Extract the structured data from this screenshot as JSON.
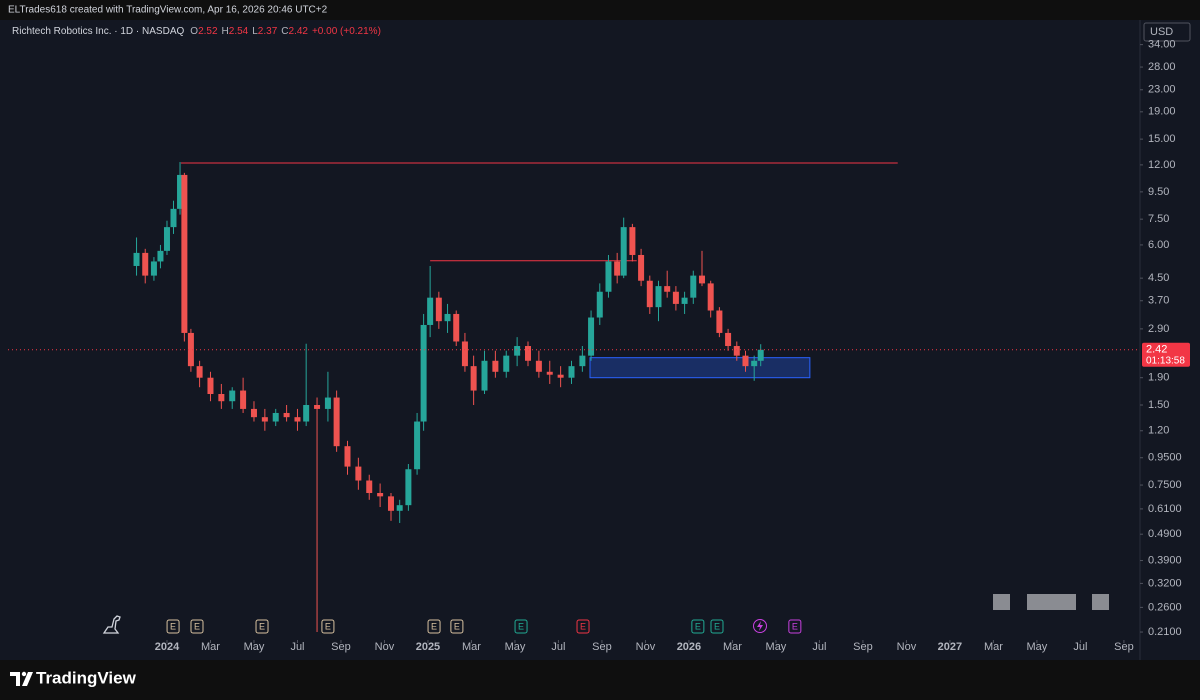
{
  "header": {
    "text": "ELTrades618 created with TradingView.com, Apr 16, 2026 20:46 UTC+2"
  },
  "legend": {
    "symbol": "Richtech Robotics Inc. · 1D · NASDAQ",
    "o_label": "O",
    "o": 2.52,
    "h_label": "H",
    "h": 2.54,
    "l_label": "L",
    "l": 2.37,
    "c_label": "C",
    "c": 2.42,
    "change": "+0.00 (+0.21%)"
  },
  "price_axis": {
    "currency": "USD"
  },
  "footer": {
    "brand": "TradingView"
  },
  "chart_data": {
    "type": "candlestick",
    "log_scale": true,
    "up_color": "#26a69a",
    "down_color": "#ef5350",
    "xlim": [
      -7.31,
      44.74
    ],
    "ylim": [
      0.196,
      40.3
    ],
    "x": [
      -1.4,
      -1.0,
      -0.6,
      -0.3,
      0.0,
      0.3,
      0.6,
      0.8,
      1.1,
      1.5,
      2.0,
      2.5,
      3.0,
      3.5,
      4.0,
      4.5,
      5.0,
      5.5,
      6.0,
      6.4,
      6.9,
      7.4,
      7.8,
      8.3,
      8.8,
      9.3,
      9.8,
      10.3,
      10.7,
      11.1,
      11.5,
      11.8,
      12.1,
      12.5,
      12.9,
      13.3,
      13.7,
      14.1,
      14.6,
      15.1,
      15.6,
      16.1,
      16.6,
      17.1,
      17.6,
      18.1,
      18.6,
      19.1,
      19.5,
      19.9,
      20.3,
      20.7,
      21.0,
      21.4,
      21.8,
      22.2,
      22.6,
      23.0,
      23.4,
      23.8,
      24.2,
      24.6,
      25.0,
      25.4,
      25.8,
      26.2,
      26.6,
      27.0,
      27.3
    ],
    "open": [
      5.0,
      5.6,
      4.6,
      5.2,
      5.7,
      7.0,
      8.2,
      11.0,
      2.8,
      2.1,
      1.9,
      1.65,
      1.55,
      1.7,
      1.45,
      1.35,
      1.3,
      1.4,
      1.35,
      1.3,
      1.5,
      1.45,
      1.6,
      1.05,
      0.88,
      0.78,
      0.7,
      0.68,
      0.6,
      0.63,
      0.86,
      1.3,
      3.0,
      3.8,
      3.1,
      3.3,
      2.6,
      2.1,
      1.7,
      2.2,
      2.0,
      2.3,
      2.5,
      2.2,
      2.0,
      1.95,
      1.9,
      2.1,
      2.3,
      3.2,
      4.0,
      5.2,
      4.6,
      7.0,
      5.5,
      4.4,
      3.5,
      4.2,
      4.0,
      3.6,
      3.8,
      4.6,
      4.3,
      3.4,
      2.8,
      2.5,
      2.3,
      2.1,
      2.2
    ],
    "high": [
      6.4,
      5.8,
      5.4,
      6.0,
      7.4,
      8.8,
      12.3,
      11.2,
      2.9,
      2.2,
      2.0,
      1.8,
      1.75,
      1.9,
      1.55,
      1.45,
      1.45,
      1.5,
      1.45,
      2.55,
      1.6,
      2.0,
      1.7,
      1.1,
      0.95,
      0.82,
      0.76,
      0.7,
      0.66,
      0.9,
      1.4,
      3.3,
      5.0,
      4.0,
      3.6,
      3.4,
      2.8,
      2.3,
      2.4,
      2.4,
      2.4,
      2.7,
      2.6,
      2.4,
      2.2,
      2.1,
      2.2,
      2.5,
      3.4,
      4.3,
      5.5,
      5.6,
      7.6,
      7.2,
      5.8,
      4.6,
      4.4,
      4.8,
      4.2,
      4.0,
      4.8,
      5.7,
      4.4,
      3.5,
      2.9,
      2.6,
      2.4,
      2.3,
      2.54
    ],
    "low": [
      4.6,
      4.3,
      4.4,
      4.9,
      5.5,
      6.6,
      7.8,
      2.6,
      2.0,
      1.75,
      1.55,
      1.45,
      1.45,
      1.4,
      1.3,
      1.2,
      1.25,
      1.3,
      1.2,
      1.25,
      0.21,
      1.3,
      1.0,
      0.82,
      0.72,
      0.66,
      0.62,
      0.55,
      0.54,
      0.6,
      0.82,
      1.2,
      2.7,
      2.9,
      2.8,
      2.5,
      2.0,
      1.5,
      1.65,
      1.9,
      1.9,
      2.1,
      2.1,
      1.9,
      1.8,
      1.75,
      1.8,
      2.0,
      2.2,
      3.0,
      3.8,
      4.3,
      4.5,
      5.2,
      4.2,
      3.3,
      3.1,
      3.8,
      3.4,
      3.3,
      3.6,
      4.2,
      3.2,
      2.7,
      2.4,
      2.2,
      2.0,
      1.85,
      2.1
    ],
    "close": [
      5.6,
      4.6,
      5.2,
      5.7,
      7.0,
      8.2,
      11.0,
      2.8,
      2.1,
      1.9,
      1.65,
      1.55,
      1.7,
      1.45,
      1.35,
      1.3,
      1.4,
      1.35,
      1.3,
      1.5,
      1.45,
      1.6,
      1.05,
      0.88,
      0.78,
      0.7,
      0.68,
      0.6,
      0.63,
      0.86,
      1.3,
      3.0,
      3.8,
      3.1,
      3.3,
      2.6,
      2.1,
      1.7,
      2.2,
      2.0,
      2.3,
      2.5,
      2.2,
      2.0,
      1.95,
      1.9,
      2.1,
      2.3,
      3.2,
      4.0,
      5.2,
      4.6,
      7.0,
      5.5,
      4.4,
      3.5,
      4.2,
      4.0,
      3.6,
      3.8,
      4.6,
      4.3,
      3.4,
      2.8,
      2.5,
      2.3,
      2.1,
      2.2,
      2.42
    ],
    "xticks": [
      {
        "value": 0,
        "label": "2024"
      },
      {
        "value": 2,
        "label": "Mar"
      },
      {
        "value": 4,
        "label": "May"
      },
      {
        "value": 6,
        "label": "Jul"
      },
      {
        "value": 8,
        "label": "Sep"
      },
      {
        "value": 10,
        "label": "Nov"
      },
      {
        "value": 12,
        "label": "2025"
      },
      {
        "value": 14,
        "label": "Mar"
      },
      {
        "value": 16,
        "label": "May"
      },
      {
        "value": 18,
        "label": "Jul"
      },
      {
        "value": 20,
        "label": "Sep"
      },
      {
        "value": 22,
        "label": "Nov"
      },
      {
        "value": 24,
        "label": "2026"
      },
      {
        "value": 26,
        "label": "Mar"
      },
      {
        "value": 28,
        "label": "May"
      },
      {
        "value": 30,
        "label": "Jul"
      },
      {
        "value": 32,
        "label": "Sep"
      },
      {
        "value": 34,
        "label": "Nov"
      },
      {
        "value": 36,
        "label": "2027"
      },
      {
        "value": 38,
        "label": "Mar"
      },
      {
        "value": 40,
        "label": "May"
      },
      {
        "value": 42,
        "label": "Jul"
      },
      {
        "value": 44,
        "label": "Sep"
      }
    ],
    "yticks": [
      {
        "value": 34,
        "label": "34.00"
      },
      {
        "value": 28,
        "label": "28.00"
      },
      {
        "value": 23,
        "label": "23.00"
      },
      {
        "value": 19,
        "label": "19.00"
      },
      {
        "value": 15,
        "label": "15.00"
      },
      {
        "value": 12,
        "label": "12.00"
      },
      {
        "value": 9.5,
        "label": "9.50"
      },
      {
        "value": 7.5,
        "label": "7.50"
      },
      {
        "value": 6,
        "label": "6.00"
      },
      {
        "value": 4.5,
        "label": "4.50"
      },
      {
        "value": 3.7,
        "label": "3.70"
      },
      {
        "value": 2.9,
        "label": "2.90"
      },
      {
        "value": 1.9,
        "label": "1.90"
      },
      {
        "value": 1.5,
        "label": "1.50"
      },
      {
        "value": 1.2,
        "label": "1.20"
      },
      {
        "value": 0.95,
        "label": "0.9500"
      },
      {
        "value": 0.75,
        "label": "0.7500"
      },
      {
        "value": 0.61,
        "label": "0.6100"
      },
      {
        "value": 0.49,
        "label": "0.4900"
      },
      {
        "value": 0.39,
        "label": "0.3900"
      },
      {
        "value": 0.32,
        "label": "0.3200"
      },
      {
        "value": 0.26,
        "label": "0.2600"
      },
      {
        "value": 0.21,
        "label": "0.2100"
      }
    ],
    "last_price": {
      "value": 2.42,
      "countdown": "01:13:58",
      "color": "#f23645"
    },
    "levels": [
      {
        "y": 12.2,
        "x": [
          0.64,
          33.6
        ],
        "color": "#f23645"
      },
      {
        "y": 5.23,
        "x": [
          12.1,
          21.6
        ],
        "color": "#f23645"
      }
    ],
    "zone": {
      "x": [
        19.45,
        29.56
      ],
      "y": [
        1.9,
        2.26
      ],
      "color": "#2962ff"
    },
    "events": [
      {
        "x": 0.28,
        "label": "E",
        "color": "#d8c2a0"
      },
      {
        "x": 1.38,
        "label": "E",
        "color": "#d8c2a0"
      },
      {
        "x": 4.37,
        "label": "E",
        "color": "#d8c2a0"
      },
      {
        "x": 7.4,
        "label": "E",
        "color": "#d8c2a0"
      },
      {
        "x": 12.28,
        "label": "E",
        "color": "#d8c2a0"
      },
      {
        "x": 13.33,
        "label": "E",
        "color": "#d8c2a0"
      },
      {
        "x": 16.28,
        "label": "E",
        "color": "#22ab94"
      },
      {
        "x": 19.13,
        "label": "E",
        "color": "#f23645"
      },
      {
        "x": 24.41,
        "label": "E",
        "color": "#22ab94"
      },
      {
        "x": 25.29,
        "label": "E",
        "color": "#22ab94"
      },
      {
        "x": 28.87,
        "label": "E",
        "color": "#c940e0"
      }
    ]
  }
}
